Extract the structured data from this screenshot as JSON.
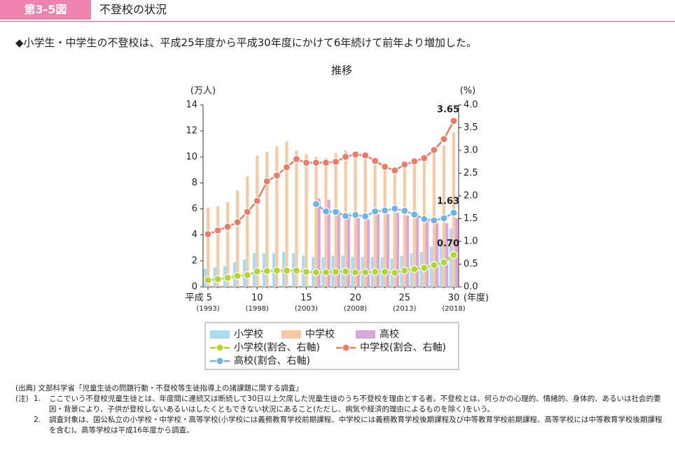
{
  "header": {
    "label": "第3-5図",
    "title": "不登校の状況"
  },
  "lead": "◆小学生・中学生の不登校は、平成25年度から平成30年度にかけて6年続けて前年より増加した。",
  "chart_data": {
    "type": "bar",
    "title": "推移",
    "y_label": "(万人)",
    "y2_label": "(%)",
    "x_unit": "(年度)",
    "categories": [
      "平成 5",
      null,
      null,
      null,
      null,
      "10",
      null,
      null,
      null,
      null,
      "15",
      null,
      null,
      null,
      null,
      "20",
      null,
      null,
      null,
      null,
      "25",
      null,
      null,
      null,
      null,
      "30"
    ],
    "category_sublabels": [
      "(1993)",
      null,
      null,
      null,
      null,
      "(1998)",
      null,
      null,
      null,
      null,
      "(2003)",
      null,
      null,
      null,
      null,
      "(2008)",
      null,
      null,
      null,
      null,
      "(2013)",
      null,
      null,
      null,
      null,
      "(2018)"
    ],
    "ylim": [
      0,
      14
    ],
    "yticks": [
      0,
      2,
      4,
      6,
      8,
      10,
      12,
      14
    ],
    "y2lim": [
      0,
      4
    ],
    "y2ticks": [
      {
        "value": 0,
        "label": "0.0"
      },
      {
        "value": 0.5,
        "label": "0.5"
      },
      {
        "value": 1,
        "label": "1.0"
      },
      {
        "value": 1.5,
        "label": "1.5"
      },
      {
        "value": 2,
        "label": "2.0"
      },
      {
        "value": 2.5,
        "label": "2.5"
      },
      {
        "value": 3,
        "label": "3.0"
      },
      {
        "value": 3.5,
        "label": "3.5"
      },
      {
        "value": 4,
        "label": "4.0"
      }
    ],
    "series": [
      {
        "name": "小学校",
        "type": "bar",
        "color": "#a9dcef",
        "values": [
          1.4,
          1.5,
          1.6,
          1.9,
          2.1,
          2.6,
          2.6,
          2.6,
          2.7,
          2.6,
          2.4,
          2.3,
          2.3,
          2.4,
          2.4,
          2.3,
          2.3,
          2.3,
          2.3,
          2.2,
          2.4,
          2.6,
          2.7,
          3.1,
          3.5,
          4.5
        ]
      },
      {
        "name": "中学校",
        "type": "bar",
        "color": "#f9c9a2",
        "values": [
          6.1,
          6.2,
          6.5,
          7.4,
          8.5,
          10.1,
          10.4,
          10.8,
          11.2,
          10.5,
          10.2,
          10.0,
          9.9,
          10.3,
          10.5,
          10.4,
          10.0,
          9.7,
          9.5,
          9.2,
          9.5,
          9.7,
          9.9,
          10.3,
          10.9,
          11.9
        ]
      },
      {
        "name": "高校",
        "type": "bar",
        "color": "#dba6dc",
        "values": [
          null,
          null,
          null,
          null,
          null,
          null,
          null,
          null,
          null,
          null,
          null,
          6.8,
          6.7,
          5.9,
          5.7,
          5.3,
          5.2,
          5.6,
          5.6,
          5.7,
          5.5,
          5.6,
          5.3,
          4.9,
          4.9,
          5.3
        ]
      },
      {
        "name": "小学校(割合、右軸)",
        "type": "line",
        "axis": "y2",
        "color": "#b7d333",
        "end_label": "0.70",
        "values": [
          0.15,
          0.17,
          0.2,
          0.24,
          0.26,
          0.34,
          0.35,
          0.36,
          0.36,
          0.36,
          0.33,
          0.32,
          0.32,
          0.33,
          0.34,
          0.32,
          0.32,
          0.33,
          0.33,
          0.31,
          0.36,
          0.39,
          0.42,
          0.48,
          0.54,
          0.7
        ]
      },
      {
        "name": "中学校(割合、右軸)",
        "type": "line",
        "axis": "y2",
        "color": "#ee7b68",
        "end_label": "3.65",
        "values": [
          1.16,
          1.24,
          1.32,
          1.42,
          1.65,
          1.89,
          2.32,
          2.45,
          2.63,
          2.81,
          2.73,
          2.73,
          2.73,
          2.75,
          2.86,
          2.91,
          2.89,
          2.77,
          2.64,
          2.56,
          2.69,
          2.76,
          2.83,
          3.01,
          3.25,
          3.65
        ]
      },
      {
        "name": "高校(割合、右軸)",
        "type": "line",
        "axis": "y2",
        "color": "#6fb3e6",
        "end_label": "1.63",
        "values": [
          null,
          null,
          null,
          null,
          null,
          null,
          null,
          null,
          null,
          null,
          null,
          1.82,
          1.66,
          1.65,
          1.56,
          1.58,
          1.55,
          1.66,
          1.68,
          1.72,
          1.67,
          1.59,
          1.49,
          1.46,
          1.51,
          1.63
        ]
      }
    ]
  },
  "source": "(出典) 文部科学省「児童生徒の問題行動・不登校等生徒指導上の諸課題に関する調査」",
  "notes": {
    "label": "(注)",
    "items": [
      {
        "num": "1.",
        "text": "ここでいう不登校児童生徒とは、年度間に連続又は断続して30日以上欠席した児童生徒のうち不登校を理由とする者。不登校とは、何らかの心理的、情緒的、身体的、あるいは社会的要因・背景により、子供が登校しないあるいはしたくともできない状況にあること(ただし、病気や経済的理由によるものを除く)をいう。"
      },
      {
        "num": "2.",
        "text": "調査対象は、国公私立の小学校・中学校・高等学校(小学校には義務教育学校前期課程、中学校には義務教育学校後期課程及び中等教育学校前期課程、高等学校には中等教育学校後期課程を含む)。高等学校は平成16年度から調査。"
      }
    ]
  }
}
